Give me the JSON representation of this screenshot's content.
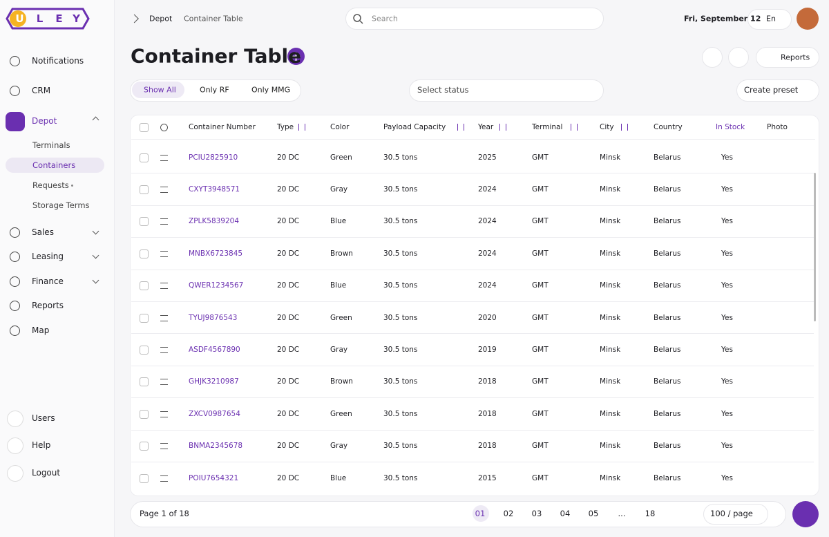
{
  "logo": [
    "U",
    "L",
    "E",
    "Y"
  ],
  "sidebar": {
    "nav": [
      "Notifications",
      "CRM",
      "Depot",
      "Sales",
      "Leasing",
      "Finance",
      "Reports",
      "Map"
    ],
    "depot_sub": [
      "Terminals",
      "Containers",
      "Requests",
      "Storage Terms"
    ],
    "bottom": [
      "Users",
      "Help",
      "Logout"
    ]
  },
  "header": {
    "breadcrumb": [
      "Depot",
      "Container Table"
    ],
    "search": "Search",
    "date": "Fri, September 12",
    "language": "En"
  },
  "page": {
    "title": "Container Table",
    "reports": "Reports"
  },
  "filters": {
    "tabs": [
      "Show All",
      "Only RF",
      "Only MMG"
    ],
    "status": "Select status",
    "preset": "Create preset"
  },
  "table": {
    "columns": [
      "Container Number",
      "Type",
      "Color",
      "Payload Capacity",
      "Year",
      "Terminal",
      "City",
      "Country",
      "In Stock",
      "Photo"
    ],
    "rows": [
      [
        "PCIU2825910",
        "20 DC",
        "Green",
        "30.5 tons",
        "2025",
        "GMT",
        "Minsk",
        "Belarus",
        "Yes"
      ],
      [
        "CXYT3948571",
        "20 DC",
        "Gray",
        "30.5 tons",
        "2024",
        "GMT",
        "Minsk",
        "Belarus",
        "Yes"
      ],
      [
        "ZPLK5839204",
        "20 DC",
        "Blue",
        "30.5 tons",
        "2024",
        "GMT",
        "Minsk",
        "Belarus",
        "Yes"
      ],
      [
        "MNBX6723845",
        "20 DC",
        "Brown",
        "30.5 tons",
        "2024",
        "GMT",
        "Minsk",
        "Belarus",
        "Yes"
      ],
      [
        "QWER1234567",
        "20 DC",
        "Blue",
        "30.5 tons",
        "2024",
        "GMT",
        "Minsk",
        "Belarus",
        "Yes"
      ],
      [
        "TYUJ9876543",
        "20 DC",
        "Green",
        "30.5 tons",
        "2020",
        "GMT",
        "Minsk",
        "Belarus",
        "Yes"
      ],
      [
        "ASDF4567890",
        "20 DC",
        "Gray",
        "30.5 tons",
        "2019",
        "GMT",
        "Minsk",
        "Belarus",
        "Yes"
      ],
      [
        "GHJK3210987",
        "20 DC",
        "Brown",
        "30.5 tons",
        "2018",
        "GMT",
        "Minsk",
        "Belarus",
        "Yes"
      ],
      [
        "ZXCV0987654",
        "20 DC",
        "Green",
        "30.5 tons",
        "2018",
        "GMT",
        "Minsk",
        "Belarus",
        "Yes"
      ],
      [
        "BNMA2345678",
        "20 DC",
        "Gray",
        "30.5 tons",
        "2018",
        "GMT",
        "Minsk",
        "Belarus",
        "Yes"
      ],
      [
        "POIU7654321",
        "20 DC",
        "Blue",
        "30.5 tons",
        "2015",
        "GMT",
        "Minsk",
        "Belarus",
        "Yes"
      ]
    ]
  },
  "pagination": {
    "info": "Page 1 of 18",
    "pages": [
      "01",
      "02",
      "03",
      "04",
      "05",
      "...",
      "18"
    ],
    "per_page": "100 / page"
  }
}
